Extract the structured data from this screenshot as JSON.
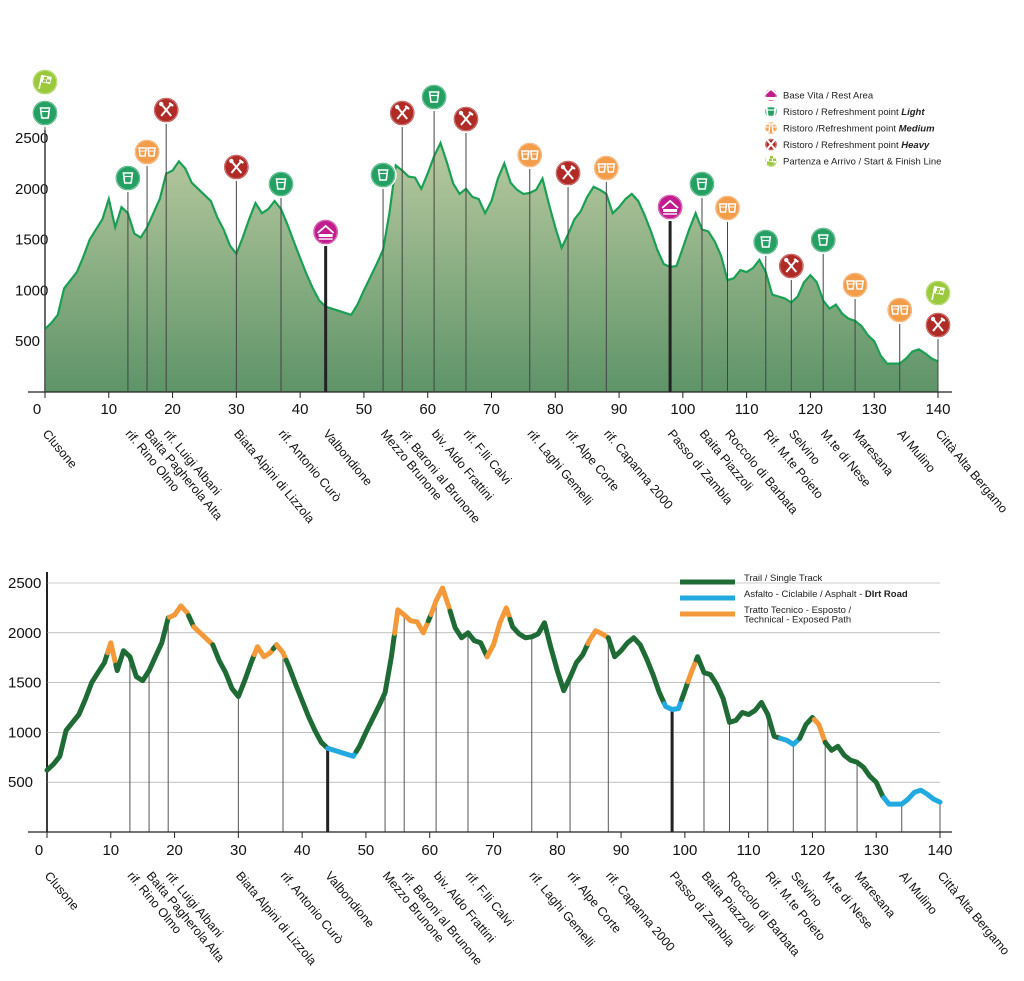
{
  "colors": {
    "trail": "#1f6b35",
    "asphalt": "#22a9e0",
    "technical": "#f4993a",
    "profile_line": "#1aa055",
    "profile_fill_top": "#b9c9a0",
    "profile_fill_bottom": "#5e9468",
    "rest": "#c21c8f",
    "light": "#23a062",
    "medium": "#f39c4a",
    "heavy": "#b02a26",
    "startfinish": "#9bc93c"
  },
  "legend_top": [
    {
      "type": "rest",
      "icon": "rest-area-icon",
      "text": "Base Vita / Rest Area",
      "bold": ""
    },
    {
      "type": "light",
      "icon": "cup-icon",
      "text": "Ristoro / Refreshment point ",
      "bold": "Light"
    },
    {
      "type": "medium",
      "icon": "cups-icon",
      "text": "Ristoro /Refreshment point ",
      "bold": "Medium"
    },
    {
      "type": "heavy",
      "icon": "cutlery-icon",
      "text": "Ristoro / Refreshment point ",
      "bold": "Heavy"
    },
    {
      "type": "startfinish",
      "icon": "flag-icon",
      "text": "Partenza e Arrivo / Start & Finish Line",
      "bold": ""
    }
  ],
  "legend_bottom": [
    {
      "type": "trail",
      "text": [
        "Trail / Single Track"
      ],
      "bold": ""
    },
    {
      "type": "asphalt",
      "text": [
        "Asfalto - Ciclabile / Asphalt - "
      ],
      "bold": "DIrt Road"
    },
    {
      "type": "technical",
      "text": [
        "Tratto Tecnico - Esposto /",
        "Technical - Exposed Path"
      ],
      "bold": ""
    }
  ],
  "chart_data": [
    {
      "type": "area",
      "xlim": [
        0,
        140
      ],
      "ylim": [
        0,
        2700
      ],
      "x_ticks": [
        "0",
        "10",
        "20",
        "30",
        "40",
        "50",
        "60",
        "70",
        "80",
        "90",
        "100",
        "110",
        "120",
        "130",
        "140"
      ],
      "y_ticks": [
        "500",
        "1000",
        "1500",
        "2000",
        "2500"
      ],
      "profile": [
        [
          0,
          620
        ],
        [
          1,
          680
        ],
        [
          2,
          760
        ],
        [
          3,
          1020
        ],
        [
          4,
          1100
        ],
        [
          5,
          1180
        ],
        [
          6,
          1330
        ],
        [
          7,
          1500
        ],
        [
          8,
          1600
        ],
        [
          9,
          1700
        ],
        [
          10,
          1900
        ],
        [
          11,
          1620
        ],
        [
          12,
          1820
        ],
        [
          13,
          1760
        ],
        [
          14,
          1560
        ],
        [
          15,
          1520
        ],
        [
          16,
          1620
        ],
        [
          17,
          1760
        ],
        [
          18,
          1900
        ],
        [
          19,
          2150
        ],
        [
          20,
          2180
        ],
        [
          21,
          2270
        ],
        [
          22,
          2200
        ],
        [
          23,
          2060
        ],
        [
          24,
          2000
        ],
        [
          25,
          1940
        ],
        [
          26,
          1880
        ],
        [
          27,
          1720
        ],
        [
          28,
          1600
        ],
        [
          29,
          1440
        ],
        [
          30,
          1360
        ],
        [
          31,
          1520
        ],
        [
          32,
          1700
        ],
        [
          33,
          1860
        ],
        [
          34,
          1760
        ],
        [
          35,
          1800
        ],
        [
          36,
          1880
        ],
        [
          37,
          1800
        ],
        [
          38,
          1650
        ],
        [
          39,
          1480
        ],
        [
          40,
          1320
        ],
        [
          41,
          1160
        ],
        [
          42,
          1020
        ],
        [
          43,
          900
        ],
        [
          44,
          840
        ],
        [
          45,
          820
        ],
        [
          46,
          800
        ],
        [
          47,
          780
        ],
        [
          48,
          760
        ],
        [
          49,
          860
        ],
        [
          50,
          1000
        ],
        [
          51,
          1130
        ],
        [
          52,
          1260
        ],
        [
          53,
          1400
        ],
        [
          54,
          1760
        ],
        [
          55,
          2230
        ],
        [
          56,
          2180
        ],
        [
          57,
          2120
        ],
        [
          58,
          2110
        ],
        [
          59,
          2000
        ],
        [
          60,
          2150
        ],
        [
          61,
          2320
        ],
        [
          62,
          2450
        ],
        [
          63,
          2260
        ],
        [
          64,
          2050
        ],
        [
          65,
          1950
        ],
        [
          66,
          2000
        ],
        [
          67,
          1920
        ],
        [
          68,
          1900
        ],
        [
          69,
          1760
        ],
        [
          70,
          1880
        ],
        [
          71,
          2100
        ],
        [
          72,
          2250
        ],
        [
          73,
          2060
        ],
        [
          74,
          1990
        ],
        [
          75,
          1950
        ],
        [
          76,
          1960
        ],
        [
          77,
          1990
        ],
        [
          78,
          2100
        ],
        [
          79,
          1850
        ],
        [
          80,
          1620
        ],
        [
          81,
          1420
        ],
        [
          82,
          1550
        ],
        [
          83,
          1700
        ],
        [
          84,
          1780
        ],
        [
          85,
          1920
        ],
        [
          86,
          2020
        ],
        [
          87,
          1990
        ],
        [
          88,
          1950
        ],
        [
          89,
          1760
        ],
        [
          90,
          1820
        ],
        [
          91,
          1900
        ],
        [
          92,
          1950
        ],
        [
          93,
          1880
        ],
        [
          94,
          1740
        ],
        [
          95,
          1580
        ],
        [
          96,
          1400
        ],
        [
          97,
          1260
        ],
        [
          98,
          1230
        ],
        [
          99,
          1240
        ],
        [
          100,
          1420
        ],
        [
          101,
          1600
        ],
        [
          102,
          1760
        ],
        [
          103,
          1600
        ],
        [
          104,
          1580
        ],
        [
          105,
          1480
        ],
        [
          106,
          1340
        ],
        [
          107,
          1100
        ],
        [
          108,
          1120
        ],
        [
          109,
          1200
        ],
        [
          110,
          1180
        ],
        [
          111,
          1220
        ],
        [
          112,
          1300
        ],
        [
          113,
          1180
        ],
        [
          114,
          960
        ],
        [
          115,
          940
        ],
        [
          116,
          920
        ],
        [
          117,
          880
        ],
        [
          118,
          940
        ],
        [
          119,
          1080
        ],
        [
          120,
          1150
        ],
        [
          121,
          1080
        ],
        [
          122,
          900
        ],
        [
          123,
          820
        ],
        [
          124,
          860
        ],
        [
          125,
          770
        ],
        [
          126,
          720
        ],
        [
          127,
          700
        ],
        [
          128,
          650
        ],
        [
          129,
          560
        ],
        [
          130,
          500
        ],
        [
          131,
          360
        ],
        [
          132,
          280
        ],
        [
          133,
          280
        ],
        [
          134,
          280
        ],
        [
          135,
          330
        ],
        [
          136,
          400
        ],
        [
          137,
          420
        ],
        [
          138,
          380
        ],
        [
          139,
          330
        ],
        [
          140,
          300
        ]
      ],
      "segments": [
        {
          "type": "trail",
          "from": 0,
          "to": 9.5
        },
        {
          "type": "technical",
          "from": 9.5,
          "to": 10.8
        },
        {
          "type": "trail",
          "from": 10.8,
          "to": 19.2
        },
        {
          "type": "technical",
          "from": 19.2,
          "to": 22.2
        },
        {
          "type": "trail",
          "from": 22.2,
          "to": 23
        },
        {
          "type": "technical",
          "from": 23,
          "to": 26
        },
        {
          "type": "trail",
          "from": 26,
          "to": 32.5
        },
        {
          "type": "technical",
          "from": 32.5,
          "to": 35.5
        },
        {
          "type": "trail",
          "from": 35.5,
          "to": 36
        },
        {
          "type": "technical",
          "from": 36,
          "to": 37.5
        },
        {
          "type": "trail",
          "from": 37.5,
          "to": 44
        },
        {
          "type": "asphalt",
          "from": 44,
          "to": 48.5
        },
        {
          "type": "trail",
          "from": 48.5,
          "to": 54.5
        },
        {
          "type": "technical",
          "from": 54.5,
          "to": 59.8
        },
        {
          "type": "trail",
          "from": 59.8,
          "to": 60.2
        },
        {
          "type": "technical",
          "from": 60.2,
          "to": 63.2
        },
        {
          "type": "trail",
          "from": 63.2,
          "to": 69
        },
        {
          "type": "technical",
          "from": 69,
          "to": 72.6
        },
        {
          "type": "trail",
          "from": 72.6,
          "to": 84.8
        },
        {
          "type": "technical",
          "from": 84.8,
          "to": 88
        },
        {
          "type": "trail",
          "from": 88,
          "to": 96.8
        },
        {
          "type": "asphalt",
          "from": 96.8,
          "to": 99.5
        },
        {
          "type": "trail",
          "from": 99.5,
          "to": 100.5
        },
        {
          "type": "technical",
          "from": 100.5,
          "to": 101.8
        },
        {
          "type": "trail",
          "from": 101.8,
          "to": 115
        },
        {
          "type": "asphalt",
          "from": 115,
          "to": 118
        },
        {
          "type": "trail",
          "from": 118,
          "to": 120.3
        },
        {
          "type": "technical",
          "from": 120.3,
          "to": 122
        },
        {
          "type": "trail",
          "from": 122,
          "to": 131.2
        },
        {
          "type": "asphalt",
          "from": 131.2,
          "to": 140
        }
      ],
      "points": [
        {
          "km": 0,
          "name": "Clusone",
          "icons": [
            "light",
            "startfinish"
          ]
        },
        {
          "km": 13,
          "name": "rif. Rino Olmo",
          "icons": [
            "light"
          ]
        },
        {
          "km": 16,
          "name": "Baita Pagherola Alta",
          "icons": [
            "medium"
          ]
        },
        {
          "km": 19,
          "name": "rif. Luigi Albani",
          "icons": [
            "heavy"
          ]
        },
        {
          "km": 30,
          "name": "Biata Alpini di Lizzola",
          "icons": [
            "heavy"
          ]
        },
        {
          "km": 37,
          "name": "rif. Antonio Curò",
          "icons": [
            "light"
          ]
        },
        {
          "km": 44,
          "name": "Valbondione",
          "icons": [
            "rest"
          ]
        },
        {
          "km": 53,
          "name": "Mezzo Brunone",
          "icons": [
            "light"
          ]
        },
        {
          "km": 56,
          "name": "rif. Baroni al Brunone",
          "icons": [
            "heavy"
          ]
        },
        {
          "km": 61,
          "name": "biv. Aldo Frattini",
          "icons": [
            "light"
          ]
        },
        {
          "km": 66,
          "name": "rif. F.lli Calvi",
          "icons": [
            "heavy"
          ]
        },
        {
          "km": 76,
          "name": "rif. Laghi Gemelli",
          "icons": [
            "medium"
          ]
        },
        {
          "km": 82,
          "name": "rif. Alpe Corte",
          "icons": [
            "heavy"
          ]
        },
        {
          "km": 88,
          "name": "rif. Capanna 2000",
          "icons": [
            "medium"
          ]
        },
        {
          "km": 98,
          "name": "Passo di Zambla",
          "icons": [
            "rest"
          ]
        },
        {
          "km": 103,
          "name": "Baita Piazzoli",
          "icons": [
            "light"
          ]
        },
        {
          "km": 107,
          "name": "Roccolo di Barbata",
          "icons": [
            "medium"
          ]
        },
        {
          "km": 113,
          "name": "Rif. M.te Poieto",
          "icons": [
            "light"
          ]
        },
        {
          "km": 117,
          "name": "Selvino",
          "icons": [
            "heavy"
          ]
        },
        {
          "km": 122,
          "name": "M.te di Nese",
          "icons": [
            "light"
          ]
        },
        {
          "km": 127,
          "name": "Maresana",
          "icons": [
            "medium"
          ]
        },
        {
          "km": 134,
          "name": "Al Mulino",
          "icons": [
            "medium"
          ]
        },
        {
          "km": 140,
          "name": "Città Alta Bergamo",
          "icons": [
            "heavy",
            "startfinish"
          ]
        }
      ]
    },
    {
      "type": "line",
      "xlim": [
        0,
        140
      ],
      "ylim": [
        0,
        2700
      ],
      "x_ticks": [
        "0",
        "10",
        "20",
        "30",
        "40",
        "50",
        "60",
        "70",
        "80",
        "90",
        "100",
        "110",
        "120",
        "130",
        "140"
      ],
      "y_ticks": [
        "500",
        "1000",
        "1500",
        "2000",
        "2500"
      ],
      "points_from": "chart_data.0.points",
      "series_from": "chart_data.0.segments"
    }
  ]
}
